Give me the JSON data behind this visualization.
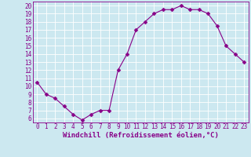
{
  "x": [
    0,
    1,
    2,
    3,
    4,
    5,
    6,
    7,
    8,
    9,
    10,
    11,
    12,
    13,
    14,
    15,
    16,
    17,
    18,
    19,
    20,
    21,
    22,
    23
  ],
  "y": [
    10.5,
    9.0,
    8.5,
    7.5,
    6.5,
    5.8,
    6.5,
    7.0,
    7.0,
    12.0,
    14.0,
    17.0,
    18.0,
    19.0,
    19.5,
    19.5,
    20.0,
    19.5,
    19.5,
    19.0,
    17.5,
    15.0,
    14.0,
    13.0
  ],
  "xlim": [
    -0.5,
    23.5
  ],
  "ylim": [
    5.5,
    20.5
  ],
  "yticks": [
    6,
    7,
    8,
    9,
    10,
    11,
    12,
    13,
    14,
    15,
    16,
    17,
    18,
    19,
    20
  ],
  "xticks": [
    0,
    1,
    2,
    3,
    4,
    5,
    6,
    7,
    8,
    9,
    10,
    11,
    12,
    13,
    14,
    15,
    16,
    17,
    18,
    19,
    20,
    21,
    22,
    23
  ],
  "xlabel": "Windchill (Refroidissement éolien,°C)",
  "line_color": "#880088",
  "marker": "D",
  "marker_size": 2.5,
  "bg_color": "#cce8f0",
  "grid_color": "#ffffff",
  "tick_label_fontsize": 5.5,
  "xlabel_fontsize": 6.5
}
